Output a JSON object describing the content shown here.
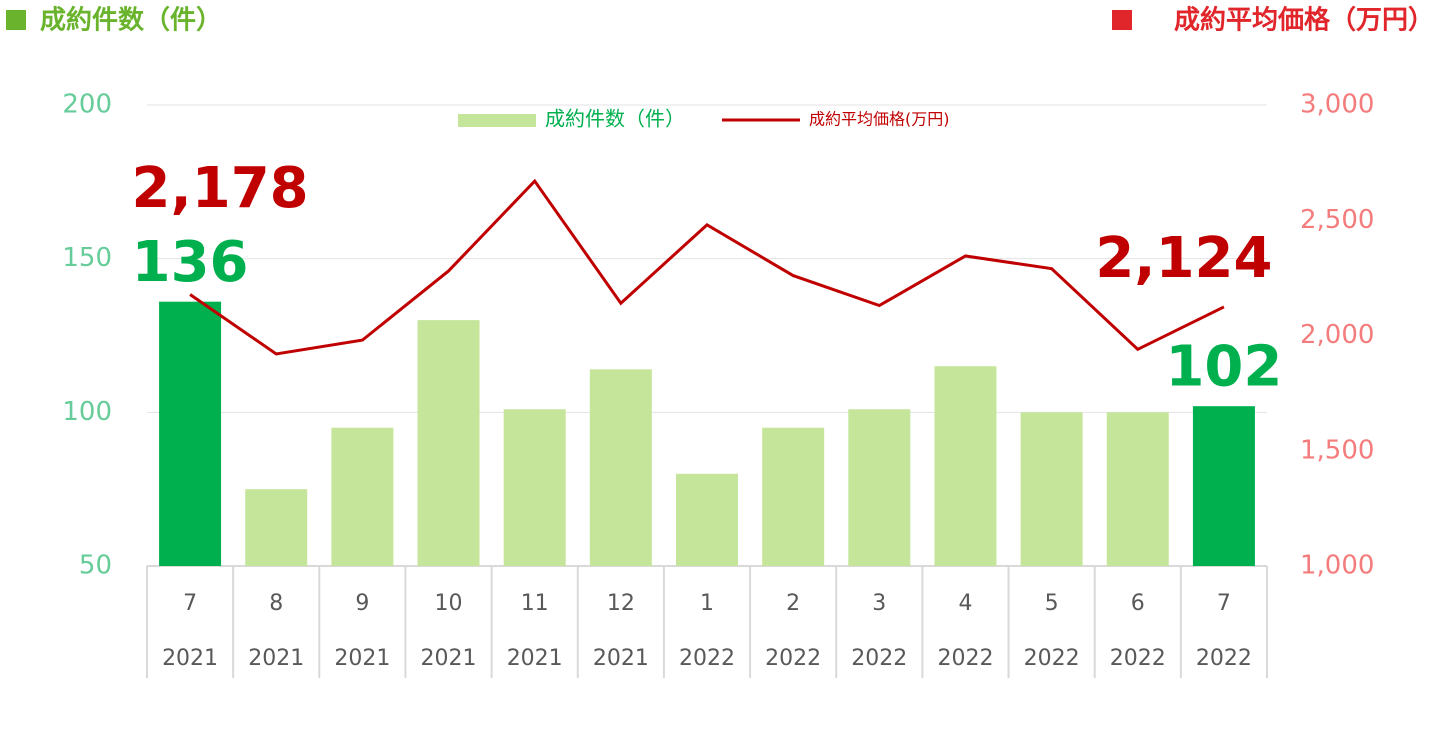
{
  "chart_data": {
    "type": "bar_line",
    "y_label": "成約件数（件）",
    "y2_label": "成約平均価格（万円）",
    "categories": [
      [
        "7",
        "2021"
      ],
      [
        "8",
        "2021"
      ],
      [
        "9",
        "2021"
      ],
      [
        "10",
        "2021"
      ],
      [
        "11",
        "2021"
      ],
      [
        "12",
        "2021"
      ],
      [
        "1",
        "2022"
      ],
      [
        "2",
        "2022"
      ],
      [
        "3",
        "2022"
      ],
      [
        "4",
        "2022"
      ],
      [
        "5",
        "2022"
      ],
      [
        "6",
        "2022"
      ],
      [
        "7",
        "2022"
      ]
    ],
    "series": [
      {
        "name": "成約件数（件）",
        "type": "bar",
        "color": "#c5e59a",
        "colors": [
          "#00b04f",
          "#c5e59a",
          "#c5e59a",
          "#c5e59a",
          "#c5e59a",
          "#c5e59a",
          "#c5e59a",
          "#c5e59a",
          "#c5e59a",
          "#c5e59a",
          "#c5e59a",
          "#c5e59a",
          "#00b04f"
        ],
        "values": [
          136,
          75,
          95,
          130,
          101,
          114,
          80,
          95,
          101,
          115,
          100,
          100,
          102
        ],
        "value_labels": [
          "136",
          null,
          null,
          null,
          null,
          null,
          null,
          null,
          null,
          null,
          null,
          null,
          "102"
        ]
      },
      {
        "name": "成約平均価格(万円)",
        "type": "line",
        "axis": "y2",
        "color": "#c00000",
        "values": [
          2178,
          1920,
          1980,
          2280,
          2670,
          2140,
          2480,
          2260,
          2130,
          2345,
          2290,
          1940,
          2124
        ],
        "value_labels": [
          "2,178",
          null,
          null,
          null,
          null,
          null,
          null,
          null,
          null,
          null,
          null,
          null,
          "2,124"
        ]
      }
    ],
    "ylim": [
      50,
      200
    ],
    "yticks": [
      50,
      100,
      150,
      200
    ],
    "y2lim": [
      1000,
      3000
    ],
    "y2ticks": [
      {
        "value": 1000,
        "label": "1,000"
      },
      {
        "value": 1500,
        "label": "1,500"
      },
      {
        "value": 2000,
        "label": "2,000"
      },
      {
        "value": 2500,
        "label": "2,500"
      },
      {
        "value": 3000,
        "label": "3,000"
      }
    ],
    "grid": true
  }
}
